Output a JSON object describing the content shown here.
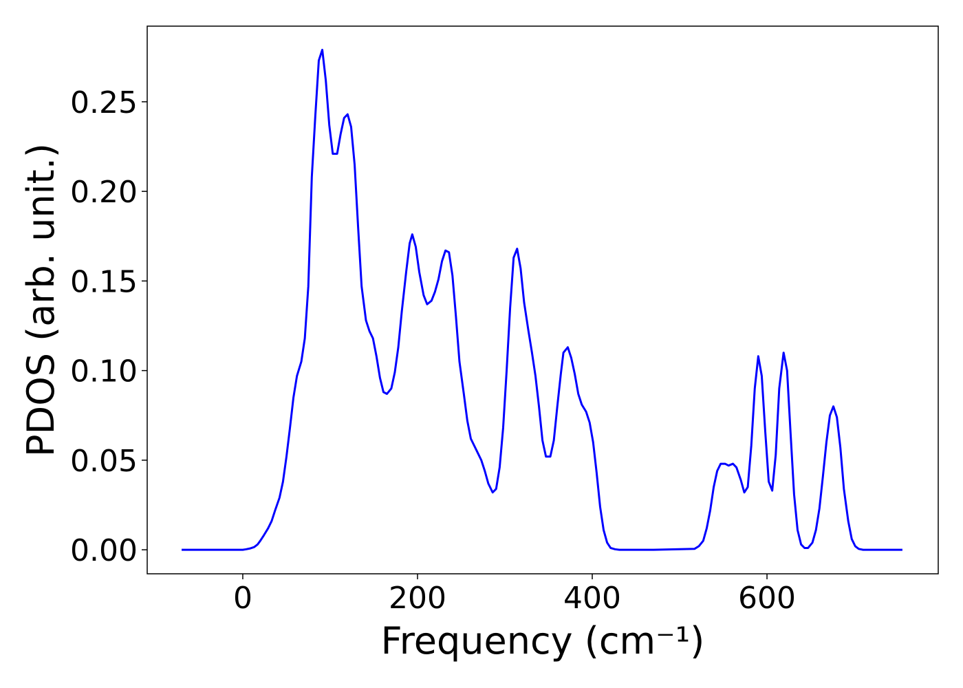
{
  "chart_data": {
    "type": "line",
    "xlabel": "Frequency (cm⁻¹)",
    "ylabel": "PDOS (arb. unit.)",
    "color": "#0000ff",
    "xlim": [
      -109.4,
      796
    ],
    "ylim": [
      -0.0134,
      0.2922
    ],
    "xticks": [
      0,
      200,
      400,
      600
    ],
    "yticks": [
      {
        "value": 0,
        "label": "0.00"
      },
      {
        "value": 0.05,
        "label": "0.05"
      },
      {
        "value": 0.1,
        "label": "0.10"
      },
      {
        "value": 0.15,
        "label": "0.15"
      },
      {
        "value": 0.2,
        "label": "0.20"
      },
      {
        "value": 0.25,
        "label": "0.25"
      }
    ],
    "x": [
      -70,
      -40,
      -20,
      0,
      4,
      8,
      13,
      17,
      20,
      24,
      29,
      33,
      37,
      42,
      46,
      50,
      54,
      58,
      62,
      67,
      71,
      75,
      79,
      83,
      87,
      91,
      95,
      99,
      103,
      108,
      112,
      116,
      120,
      124,
      128,
      132,
      136,
      141,
      145,
      149,
      153,
      157,
      161,
      165,
      170,
      174,
      178,
      182,
      187,
      191,
      194,
      198,
      202,
      207,
      211,
      216,
      220,
      224,
      228,
      232,
      236,
      240,
      244,
      248,
      253,
      257,
      261,
      265,
      268,
      273,
      277,
      281,
      286,
      290,
      294,
      298,
      302,
      306,
      310,
      314,
      318,
      322,
      327,
      331,
      335,
      339,
      343,
      347,
      352,
      356,
      360,
      364,
      367,
      372,
      376,
      380,
      384,
      388,
      393,
      397,
      401,
      405,
      409,
      413,
      417,
      421,
      426,
      431,
      470,
      517,
      522,
      527,
      531,
      535,
      539,
      543,
      547,
      552,
      556,
      561,
      565,
      570,
      574,
      578,
      582,
      586,
      590,
      594,
      598,
      602,
      606,
      610,
      614,
      619,
      623,
      627,
      631,
      635,
      639,
      643,
      647,
      652,
      656,
      660,
      664,
      668,
      672,
      676,
      680,
      684,
      688,
      693,
      697,
      701,
      705,
      710,
      755
    ],
    "values": [
      0,
      0,
      0,
      0,
      0.0003,
      0.0007,
      0.0015,
      0.003,
      0.005,
      0.008,
      0.012,
      0.016,
      0.022,
      0.029,
      0.038,
      0.052,
      0.068,
      0.085,
      0.097,
      0.105,
      0.118,
      0.147,
      0.208,
      0.242,
      0.273,
      0.279,
      0.262,
      0.237,
      0.221,
      0.221,
      0.232,
      0.241,
      0.243,
      0.236,
      0.215,
      0.18,
      0.147,
      0.128,
      0.122,
      0.118,
      0.108,
      0.096,
      0.088,
      0.087,
      0.09,
      0.099,
      0.113,
      0.133,
      0.155,
      0.171,
      0.176,
      0.169,
      0.155,
      0.142,
      0.137,
      0.139,
      0.144,
      0.151,
      0.161,
      0.167,
      0.166,
      0.153,
      0.13,
      0.105,
      0.087,
      0.072,
      0.062,
      0.058,
      0.055,
      0.05,
      0.044,
      0.037,
      0.032,
      0.034,
      0.046,
      0.068,
      0.1,
      0.135,
      0.163,
      0.168,
      0.157,
      0.138,
      0.122,
      0.11,
      0.097,
      0.08,
      0.061,
      0.052,
      0.052,
      0.061,
      0.08,
      0.098,
      0.11,
      0.113,
      0.107,
      0.098,
      0.087,
      0.081,
      0.077,
      0.071,
      0.06,
      0.043,
      0.024,
      0.011,
      0.004,
      0.001,
      0.0003,
      0,
      0,
      0.0005,
      0.002,
      0.005,
      0.012,
      0.022,
      0.035,
      0.044,
      0.048,
      0.048,
      0.047,
      0.048,
      0.046,
      0.039,
      0.032,
      0.035,
      0.058,
      0.09,
      0.108,
      0.097,
      0.066,
      0.038,
      0.033,
      0.053,
      0.09,
      0.11,
      0.1,
      0.065,
      0.031,
      0.011,
      0.003,
      0.001,
      0.001,
      0.004,
      0.011,
      0.023,
      0.041,
      0.06,
      0.075,
      0.08,
      0.074,
      0.057,
      0.034,
      0.016,
      0.006,
      0.002,
      0.0005,
      0,
      0
    ]
  }
}
